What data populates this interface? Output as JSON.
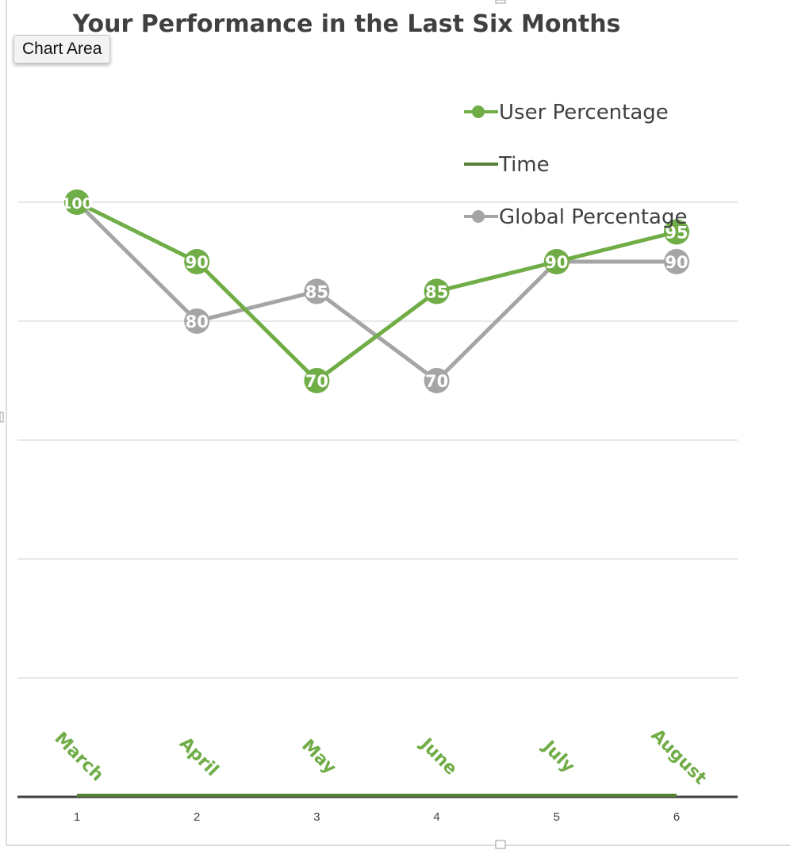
{
  "chart_data": {
    "type": "line",
    "title": "Your Performance in the Last Six Months",
    "x": [
      1,
      2,
      3,
      4,
      5,
      6
    ],
    "x_tick_labels": [
      "1",
      "2",
      "3",
      "4",
      "5",
      "6"
    ],
    "categories": [
      "March",
      "April",
      "May",
      "June",
      "July",
      "August"
    ],
    "ylim": [
      0,
      120
    ],
    "y_tick_labels_shown": false,
    "grid": true,
    "legend_position": "top-right",
    "series": [
      {
        "name": "User Percentage",
        "values": [
          100,
          90,
          70,
          85,
          90,
          95
        ],
        "color": "#70ad47",
        "markers": true,
        "data_labels": [
          "100",
          "90",
          "70",
          "85",
          "90",
          "95"
        ]
      },
      {
        "name": "Time",
        "values": [
          0,
          0,
          0,
          0,
          0,
          0
        ],
        "color": "#548235",
        "markers": false
      },
      {
        "name": "Global Percentage",
        "values": [
          100,
          80,
          85,
          70,
          90,
          90
        ],
        "color": "#a5a5a5",
        "markers": true,
        "data_labels": [
          "100",
          "80",
          "85",
          "70",
          "90",
          "90"
        ]
      }
    ]
  },
  "tooltip": {
    "label": "Chart Area"
  },
  "colors": {
    "gridline": "#d9d9d9",
    "axis": "#404040",
    "title": "#404040",
    "legend_text": "#404040",
    "category_label": "#70ad47",
    "tick_text": "#404040"
  }
}
